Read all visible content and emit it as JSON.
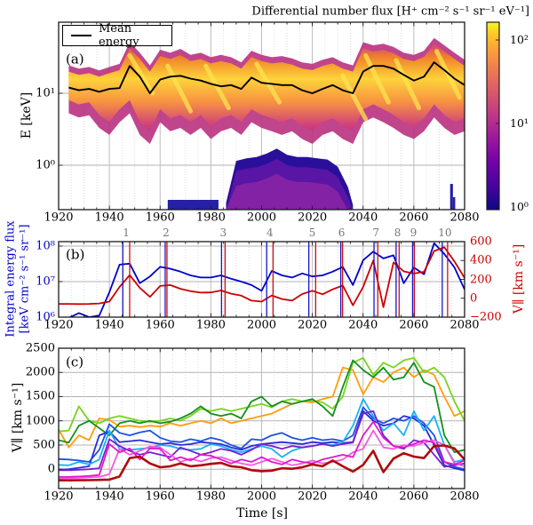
{
  "figure_title": "Differential number flux [H⁺ cm⁻² s⁻¹ sr⁻¹ eV⁻¹]",
  "panels": {
    "a": {
      "label": "(a)",
      "legend_label": "Mean energy",
      "ylabel": "E [keV]",
      "y_ticks": [
        "10¹",
        "10⁰"
      ],
      "x_ticks": [
        "1920",
        "1940",
        "1960",
        "1980",
        "2000",
        "2020",
        "2040",
        "2060",
        "2080"
      ]
    },
    "b": {
      "label": "(b)",
      "ylabel_left_line1": "Integral energy flux",
      "ylabel_left_line2": "[keV cm⁻² s⁻¹ sr⁻¹]",
      "ylabel_right": "V∥ [km s⁻¹]",
      "y_ticks_left": [
        "10⁸",
        "10⁷",
        "10⁶"
      ],
      "y_ticks_right": [
        "600",
        "400",
        "200",
        "0",
        "−200"
      ],
      "x_ticks": [
        "1920",
        "1940",
        "1960",
        "1980",
        "2000",
        "2020",
        "2040",
        "2060",
        "2080"
      ],
      "marker_numbers": [
        "1",
        "2",
        "3",
        "4",
        "5",
        "6",
        "7",
        "8",
        "9",
        "10"
      ]
    },
    "c": {
      "label": "(c)",
      "ylabel": "V∥ [km s⁻¹]",
      "xlabel": "Time [s]",
      "y_ticks": [
        "2500",
        "2000",
        "1500",
        "1000",
        "500",
        "0"
      ],
      "x_ticks": [
        "1920",
        "1940",
        "1960",
        "1980",
        "2000",
        "2020",
        "2040",
        "2060",
        "2080"
      ]
    }
  },
  "colorbar": {
    "title": "Differential number flux [H⁺ cm⁻² s⁻¹ sr⁻¹ eV⁻¹]",
    "tick_labels": [
      "10²",
      "10¹",
      "10⁰"
    ],
    "colormap": "plasma"
  },
  "chart_data": [
    {
      "type": "heatmap",
      "panel": "a",
      "title": "Differential number flux [H⁺ cm⁻² s⁻¹ sr⁻¹ eV⁻¹]",
      "ylabel": "E [keV]",
      "yscale": "log",
      "xlim": [
        1920,
        2080
      ],
      "ylim_keV": [
        0.24,
        95
      ],
      "colorbar": {
        "scale": "log",
        "tick_values": [
          100,
          10,
          1
        ],
        "tick_labels": [
          "10²",
          "10¹",
          "10⁰"
        ]
      },
      "t": [
        1924,
        1928,
        1932,
        1936,
        1940,
        1944,
        1948,
        1952,
        1956,
        1960,
        1964,
        1968,
        1972,
        1976,
        1980,
        1984,
        1988,
        1992,
        1996,
        2000,
        2004,
        2008,
        2012,
        2016,
        2020,
        2024,
        2028,
        2032,
        2036,
        2040,
        2044,
        2048,
        2052,
        2056,
        2060,
        2064,
        2068,
        2072,
        2076,
        2080
      ],
      "mean_energy_keV": [
        12,
        11,
        11.5,
        10.5,
        11.5,
        11.8,
        24,
        17,
        10,
        15.5,
        17,
        17.5,
        16,
        15,
        13.5,
        12.5,
        13,
        11.5,
        16.5,
        14,
        13.5,
        13,
        13,
        11,
        10,
        11.5,
        13,
        11,
        10,
        20,
        24,
        24,
        22,
        18,
        15,
        17,
        27,
        21,
        16,
        13
      ],
      "band_upper_keV": [
        20,
        18,
        19,
        17,
        19,
        21,
        42,
        30,
        20,
        33,
        30,
        34,
        28,
        30,
        26,
        28,
        26,
        22,
        32,
        28,
        26,
        27,
        25,
        22,
        21,
        24,
        26,
        22,
        20,
        42,
        38,
        40,
        36,
        30,
        28,
        32,
        48,
        38,
        30,
        24
      ],
      "band_lower_keV": [
        8,
        7,
        7.5,
        5,
        4,
        6,
        8,
        4,
        3,
        6,
        4.5,
        5,
        4,
        5,
        3.5,
        4.5,
        5,
        4,
        6,
        5,
        4.5,
        4,
        4.5,
        3.5,
        3,
        4,
        4.5,
        3.5,
        3,
        6,
        7,
        6,
        5,
        4,
        3.5,
        4.5,
        7,
        5,
        4,
        4.5
      ],
      "enhancement_times": [
        1947,
        1962,
        1977,
        1997,
        2031,
        2040,
        2052,
        2068
      ],
      "low_energy_blob": {
        "t": [
          1986,
          1990,
          1994,
          1998,
          2002,
          2006,
          2010,
          2014,
          2018,
          2022,
          2026,
          2030,
          2034,
          2036
        ],
        "top_keV": [
          0.3,
          1.15,
          1.25,
          1.3,
          1.45,
          1.7,
          1.4,
          1.3,
          1.3,
          1.25,
          1.2,
          0.95,
          0.5,
          0.28
        ],
        "base_keV": 0.24
      },
      "low_energy_strip": {
        "t_start": 1963,
        "t_end": 1983,
        "top_keV": 0.33
      },
      "low_energy_spikes": [
        {
          "t_start": 2074.3,
          "t_end": 2075.4,
          "top_keV": 0.55
        },
        {
          "t_start": 2075.4,
          "t_end": 2076.3,
          "top_keV": 0.36
        }
      ]
    },
    {
      "type": "line",
      "panel": "b",
      "x": [
        1920,
        1924,
        1928,
        1932,
        1936,
        1940,
        1944,
        1948,
        1952,
        1956,
        1960,
        1964,
        1968,
        1972,
        1976,
        1980,
        1984,
        1988,
        1992,
        1996,
        2000,
        2004,
        2008,
        2012,
        2016,
        2020,
        2024,
        2028,
        2032,
        2036,
        2040,
        2044,
        2048,
        2052,
        2056,
        2060,
        2064,
        2068,
        2072,
        2076,
        2080
      ],
      "left_axis": {
        "label": "Integral energy flux [keV cm⁻² s⁻¹ sr⁻¹]",
        "scale": "log",
        "lim": [
          1000000.0,
          126000000.0
        ],
        "color": "#0000cc"
      },
      "right_axis": {
        "label": "V∥ [km s⁻¹]",
        "lim": [
          -200,
          600
        ],
        "ticks": [
          600,
          400,
          200,
          0,
          -200
        ],
        "color": "#cc0000"
      },
      "series": [
        {
          "name": "integral_energy_flux",
          "axis": "left",
          "color": "#0000cc",
          "values": [
            900000.0,
            950000.0,
            1300000.0,
            1000000.0,
            1100000.0,
            5000000.0,
            30000000.0,
            32000000.0,
            9000000.0,
            14000000.0,
            26000000.0,
            23000000.0,
            19000000.0,
            15000000.0,
            13000000.0,
            13000000.0,
            15000000.0,
            12000000.0,
            10000000.0,
            8000000.0,
            5500000.0,
            20000000.0,
            15000000.0,
            13000000.0,
            17000000.0,
            14000000.0,
            15000000.0,
            19000000.0,
            26000000.0,
            8000000.0,
            40000000.0,
            70000000.0,
            45000000.0,
            55000000.0,
            9000000.0,
            25000000.0,
            16000000.0,
            120000000.0,
            60000000.0,
            25000000.0,
            6000000.0
          ]
        },
        {
          "name": "v_parallel",
          "axis": "right",
          "color": "#cc0000",
          "values": [
            -60,
            -60,
            -62,
            -60,
            -55,
            -35,
            120,
            245,
            110,
            15,
            130,
            140,
            100,
            75,
            60,
            62,
            82,
            48,
            28,
            -25,
            -35,
            30,
            -8,
            -25,
            45,
            80,
            42,
            95,
            135,
            -75,
            120,
            400,
            -95,
            380,
            285,
            262,
            280,
            500,
            540,
            390,
            215
          ]
        }
      ],
      "event_markers": [
        {
          "n": "1",
          "t_blue": 1945.3,
          "t_red": 1948.0
        },
        {
          "n": "2",
          "t_blue": 1962.0,
          "t_red": 1962.7
        },
        {
          "n": "3",
          "t_blue": 1984.2,
          "t_red": 1985.6
        },
        {
          "n": "4",
          "t_blue": 2002.0,
          "t_red": 2004.5
        },
        {
          "n": "5",
          "t_blue": 2018.6,
          "t_red": 2021.3
        },
        {
          "n": "6",
          "t_blue": 2031.2,
          "t_red": 2031.9
        },
        {
          "n": "7",
          "t_blue": 2044.3,
          "t_red": 2045.8
        },
        {
          "n": "8",
          "t_blue": 2053.0,
          "t_red": 2054.2
        },
        {
          "n": "9",
          "t_blue": 2059.5,
          "t_red": 2060.2
        },
        {
          "n": "10",
          "t_blue": 2071.2,
          "t_red": 2073.3
        }
      ]
    },
    {
      "type": "line",
      "panel": "c",
      "ylabel": "V∥ [km s⁻¹]",
      "xlabel": "Time [s]",
      "ylim": [
        -400,
        2500
      ],
      "yticks": [
        0,
        500,
        1000,
        1500,
        2000,
        2500
      ],
      "x": [
        1920,
        1924,
        1928,
        1932,
        1936,
        1940,
        1944,
        1948,
        1952,
        1956,
        1960,
        1964,
        1968,
        1972,
        1976,
        1980,
        1984,
        1988,
        1992,
        1996,
        2000,
        2004,
        2008,
        2012,
        2016,
        2020,
        2024,
        2028,
        2032,
        2036,
        2040,
        2044,
        2048,
        2052,
        2056,
        2060,
        2064,
        2068,
        2072,
        2076,
        2080
      ],
      "series": [
        {
          "name": "line-orange",
          "color": "#ff9d0a",
          "width": 1.8,
          "values": [
            820,
            450,
            700,
            600,
            1050,
            1020,
            880,
            900,
            870,
            900,
            880,
            950,
            900,
            950,
            1000,
            950,
            1050,
            950,
            1000,
            1050,
            1100,
            1150,
            1250,
            1350,
            1400,
            1380,
            1450,
            1500,
            2100,
            2050,
            1550,
            1900,
            1800,
            2000,
            2100,
            1900,
            2050,
            1950,
            1500,
            1100,
            1200
          ]
        },
        {
          "name": "line-lightgreen",
          "color": "#77d41c",
          "width": 1.8,
          "values": [
            780,
            800,
            1300,
            1000,
            950,
            1050,
            1100,
            1050,
            1000,
            980,
            1000,
            1050,
            1000,
            1100,
            1250,
            1200,
            1250,
            1200,
            1250,
            1300,
            1350,
            1280,
            1400,
            1450,
            1400,
            1420,
            1380,
            1250,
            1500,
            2200,
            2300,
            1950,
            2200,
            2100,
            2250,
            2300,
            2000,
            2100,
            1900,
            1400,
            1000
          ]
        },
        {
          "name": "line-darkgreen",
          "color": "#13901f",
          "width": 1.8,
          "values": [
            600,
            550,
            900,
            1000,
            850,
            700,
            950,
            1000,
            950,
            1000,
            950,
            980,
            1050,
            1150,
            1300,
            1150,
            1100,
            1150,
            1050,
            1400,
            1500,
            1300,
            1400,
            1350,
            1400,
            1450,
            1300,
            1100,
            1700,
            2250,
            2050,
            1900,
            2100,
            1850,
            1900,
            2200,
            1800,
            1700,
            700,
            350,
            400
          ]
        },
        {
          "name": "line-navy",
          "color": "#2b2bd6",
          "width": 1.8,
          "values": [
            -10,
            0,
            30,
            60,
            700,
            780,
            560,
            580,
            600,
            560,
            520,
            540,
            500,
            520,
            560,
            540,
            520,
            450,
            400,
            480,
            520,
            540,
            560,
            540,
            520,
            560,
            540,
            560,
            540,
            560,
            1200,
            1000,
            900,
            950,
            1100,
            1050,
            900,
            500,
            80,
            20,
            -30
          ]
        },
        {
          "name": "line-blue",
          "color": "#1c52e8",
          "width": 1.8,
          "values": [
            210,
            200,
            180,
            150,
            400,
            930,
            750,
            700,
            760,
            800,
            650,
            580,
            560,
            620,
            580,
            650,
            600,
            500,
            430,
            620,
            600,
            700,
            750,
            650,
            600,
            650,
            600,
            620,
            580,
            700,
            1280,
            1050,
            950,
            1050,
            1000,
            1100,
            950,
            700,
            150,
            50,
            0
          ]
        },
        {
          "name": "line-cyan",
          "color": "#1ab2f2",
          "width": 1.8,
          "values": [
            90,
            80,
            150,
            100,
            200,
            800,
            420,
            400,
            420,
            440,
            500,
            480,
            420,
            400,
            420,
            520,
            480,
            400,
            350,
            420,
            480,
            420,
            250,
            380,
            450,
            480,
            520,
            500,
            560,
            900,
            1450,
            1100,
            800,
            950,
            700,
            1200,
            800,
            1100,
            500,
            150,
            200
          ]
        },
        {
          "name": "line-purple",
          "color": "#7a1fd0",
          "width": 1.8,
          "values": [
            -20,
            -20,
            -10,
            0,
            20,
            620,
            480,
            380,
            300,
            350,
            300,
            250,
            450,
            380,
            300,
            350,
            420,
            380,
            300,
            400,
            520,
            480,
            420,
            480,
            450,
            480,
            520,
            480,
            520,
            550,
            1150,
            1200,
            700,
            480,
            420,
            600,
            550,
            300,
            50,
            80,
            120
          ]
        },
        {
          "name": "line-pink",
          "color": "#f957e0",
          "width": 1.8,
          "values": [
            -190,
            -188,
            -180,
            -170,
            -160,
            -100,
            420,
            300,
            380,
            470,
            450,
            300,
            150,
            220,
            160,
            230,
            250,
            180,
            120,
            80,
            150,
            220,
            150,
            80,
            120,
            180,
            120,
            150,
            200,
            350,
            420,
            800,
            450,
            420,
            500,
            480,
            550,
            600,
            500,
            120,
            60
          ]
        },
        {
          "name": "line-magenta",
          "color": "#e217cf",
          "width": 1.8,
          "values": [
            -160,
            -158,
            -150,
            -140,
            -120,
            520,
            350,
            430,
            200,
            430,
            420,
            180,
            250,
            180,
            300,
            280,
            200,
            120,
            200,
            150,
            250,
            150,
            100,
            200,
            150,
            120,
            200,
            250,
            300,
            250,
            700,
            980,
            650,
            480,
            450,
            520,
            600,
            550,
            150,
            100,
            180
          ]
        },
        {
          "name": "line-darkred",
          "color": "#ae0b0b",
          "width": 2.6,
          "values": [
            -230,
            -230,
            -228,
            -225,
            -220,
            -215,
            -150,
            230,
            260,
            120,
            40,
            60,
            120,
            60,
            80,
            110,
            130,
            60,
            40,
            -20,
            -40,
            -30,
            20,
            10,
            40,
            100,
            60,
            180,
            60,
            -50,
            90,
            380,
            -60,
            220,
            330,
            260,
            230,
            480,
            490,
            430,
            200
          ]
        }
      ]
    }
  ]
}
